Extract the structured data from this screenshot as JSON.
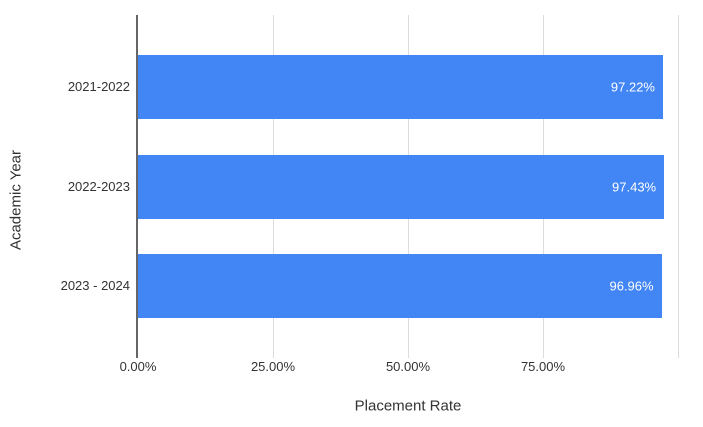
{
  "chart_data": {
    "type": "bar",
    "orientation": "horizontal",
    "title": "",
    "xlabel": "Placement Rate",
    "ylabel": "Academic Year",
    "categories": [
      "2021-2022",
      "2022-2023",
      "2023 - 2024"
    ],
    "values": [
      97.22,
      97.43,
      96.96
    ],
    "value_labels": [
      "97.22%",
      "97.43%",
      "96.96%"
    ],
    "xlim": [
      0,
      100
    ],
    "x_ticks": [
      {
        "value": 0,
        "label": "0.00%"
      },
      {
        "value": 25,
        "label": "25.00%"
      },
      {
        "value": 50,
        "label": "50.00%"
      },
      {
        "value": 75,
        "label": "75.00%"
      },
      {
        "value": 100,
        "label": ""
      }
    ],
    "grid": true,
    "legend": false,
    "colors": {
      "bar": "#4285F4",
      "gridline": "#dcdcdc",
      "axis_line": "#666666",
      "label_text": "#333333",
      "value_text": "#ffffff",
      "background": "#ffffff"
    }
  }
}
